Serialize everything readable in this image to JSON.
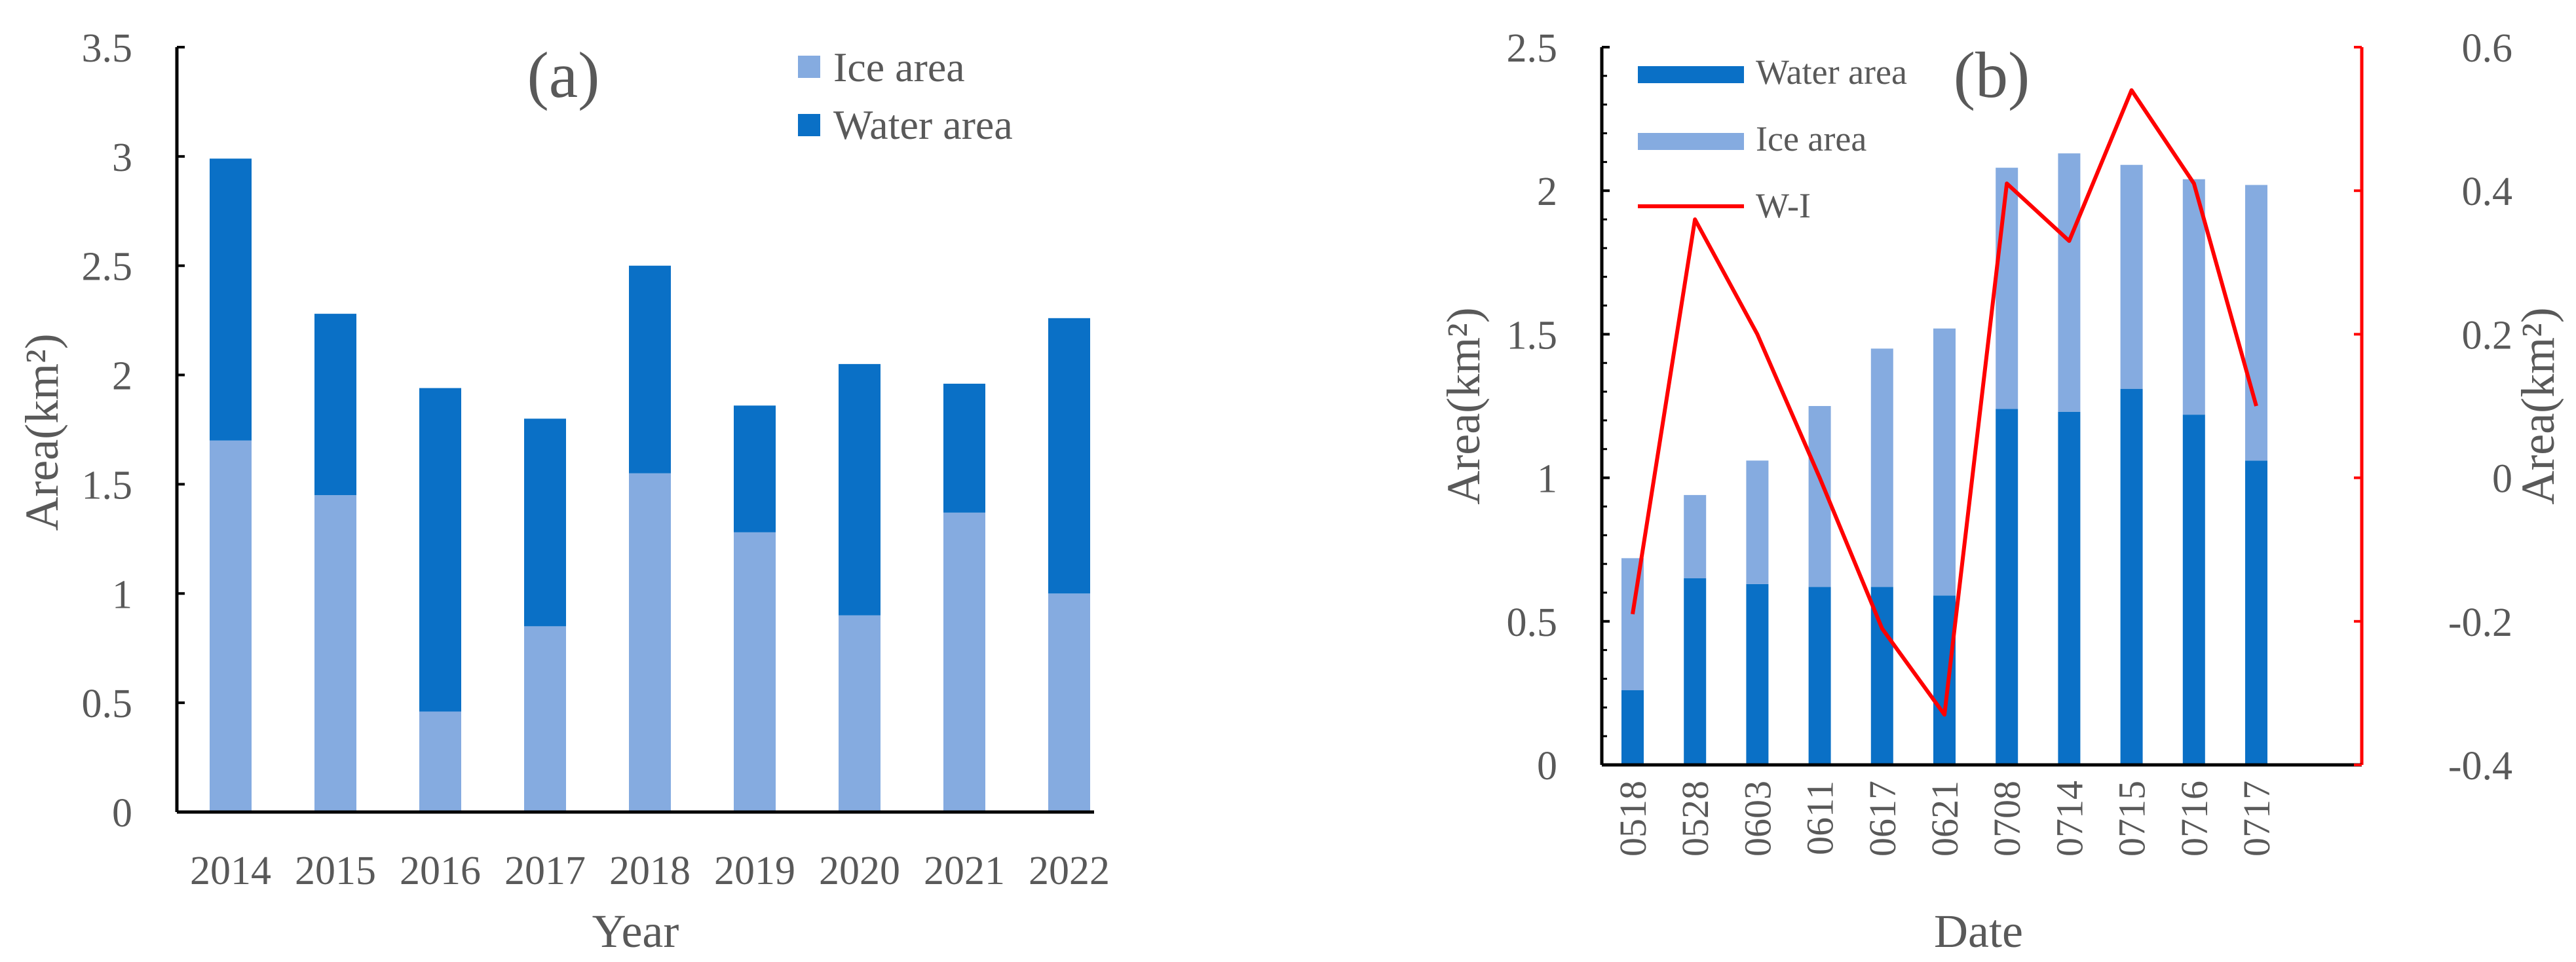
{
  "colors": {
    "ice": "#85ABE0",
    "water": "#0A70C6",
    "wi_line": "#FF0000",
    "axis": "#000000",
    "right_axis": "#FF0000",
    "text": "#595959"
  },
  "chart_data": [
    {
      "id": "a",
      "type": "bar",
      "stacked": true,
      "panel_label": "(a)",
      "xlabel": "Year",
      "ylabel": "Area(km²)",
      "ylim": [
        0,
        3.5
      ],
      "yticks": [
        0,
        0.5,
        1,
        1.5,
        2,
        2.5,
        3,
        3.5
      ],
      "ytick_labels": [
        "0",
        "0.5",
        "1",
        "1.5",
        "2",
        "2.5",
        "3",
        "3.5"
      ],
      "categories": [
        "2014",
        "2015",
        "2016",
        "2017",
        "2018",
        "2019",
        "2020",
        "2021",
        "2022"
      ],
      "series": [
        {
          "name": "Ice area",
          "values": [
            1.7,
            1.45,
            0.46,
            0.85,
            1.55,
            1.28,
            0.9,
            1.37,
            1.0
          ]
        },
        {
          "name": "Water area",
          "values": [
            1.29,
            0.83,
            1.48,
            0.95,
            0.95,
            0.58,
            1.15,
            0.59,
            1.26
          ]
        }
      ],
      "legend": [
        "Ice area",
        "Water area"
      ],
      "legend_position": "top-right",
      "grid": false
    },
    {
      "id": "b",
      "type": "bar",
      "stacked": true,
      "panel_label": "(b)",
      "xlabel": "Date",
      "ylabel": "Area(km²)",
      "y2label": "Area(km²)",
      "ylim": [
        0,
        2.5
      ],
      "yticks": [
        0,
        0.5,
        1,
        1.5,
        2,
        2.5
      ],
      "ytick_labels": [
        "0",
        "0.5",
        "1",
        "1.5",
        "2",
        "2.5"
      ],
      "y2lim": [
        -0.4,
        0.6
      ],
      "y2ticks": [
        -0.4,
        -0.2,
        0,
        0.2,
        0.4,
        0.6
      ],
      "y2tick_labels": [
        "-0.4",
        "-0.2",
        "0",
        "0.2",
        "0.4",
        "0.6"
      ],
      "categories": [
        "0518",
        "0528",
        "0603",
        "0611",
        "0617",
        "0621",
        "0708",
        "0714",
        "0715",
        "0716",
        "0717"
      ],
      "series": [
        {
          "name": "Water area",
          "values": [
            0.26,
            0.65,
            0.63,
            0.62,
            0.62,
            0.59,
            1.24,
            1.23,
            1.31,
            1.22,
            1.06
          ]
        },
        {
          "name": "Ice area",
          "values": [
            0.46,
            0.29,
            0.43,
            0.63,
            0.83,
            0.93,
            0.84,
            0.9,
            0.78,
            0.82,
            0.96
          ]
        }
      ],
      "line_series": {
        "name": "W-I",
        "axis": "right",
        "values": [
          -0.19,
          0.36,
          0.2,
          0.0,
          -0.21,
          -0.33,
          0.41,
          0.33,
          0.54,
          0.41,
          0.1
        ]
      },
      "legend": [
        "Water area",
        "Ice area",
        "W-I"
      ],
      "legend_position": "top-left",
      "grid": false
    }
  ]
}
